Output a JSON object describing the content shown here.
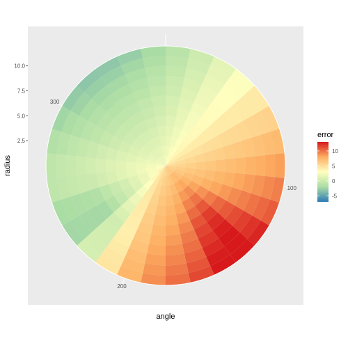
{
  "chart_data": {
    "type": "heatmap",
    "coord": "polar",
    "xlabel": "angle",
    "ylabel": "radius",
    "angle_range": [
      0,
      360
    ],
    "radius_range": [
      0,
      12
    ],
    "angle_ticks": [
      100,
      200,
      300
    ],
    "radius_ticks": [
      2.5,
      5.0,
      7.5,
      10.0
    ],
    "radius_tick_labels": [
      "2.5",
      "5.0",
      "7.5",
      "10.0"
    ],
    "angle_tick_labels": [
      "100",
      "200",
      "300"
    ],
    "grid": true,
    "legend": {
      "title": "error",
      "position": "right",
      "range": [
        -7,
        13
      ],
      "ticks": [
        -5,
        0,
        5,
        10
      ],
      "tick_labels": [
        "-5",
        "0",
        "5",
        "10"
      ],
      "palette": [
        "#2c7bb6",
        "#abdda4",
        "#ffffbf",
        "#fdae61",
        "#d7191c"
      ]
    },
    "grid_spec": {
      "angle_bins": 30,
      "radius_bins": 12,
      "angle_step": 12,
      "radius_step": 1
    },
    "description_values": "error per (angle, radius) cell, estimated from color"
  }
}
